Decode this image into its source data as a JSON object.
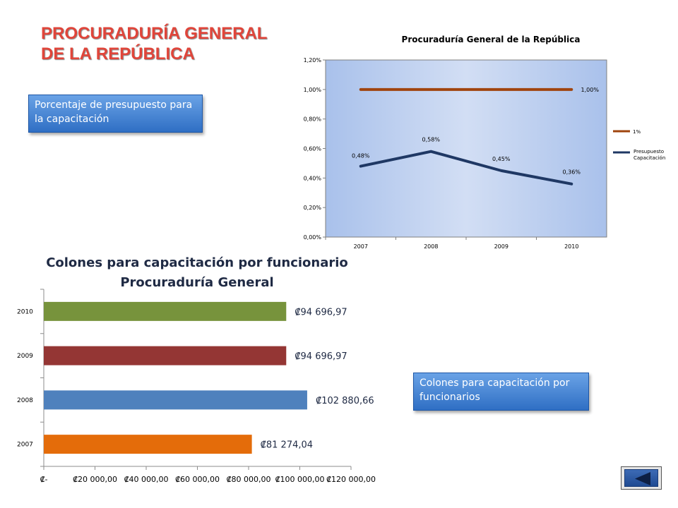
{
  "slide": {
    "title_lines": [
      "PROCURADURÍA GENERAL",
      "DE LA REPÚBLICA"
    ],
    "callout_1": "Porcentaje de presupuesto para la capacitación",
    "callout_2": "Colones para capacitación por funcionarios"
  },
  "colors": {
    "title_red": "#e0453a",
    "callout_blue": "#3b7bd0",
    "line_1pct": "#a0440e",
    "line_presupuesto": "#1f3864",
    "plot_bg": "#c8d8f2",
    "bar_2007": "#e46c0a",
    "bar_2008": "#4f81bd",
    "bar_2009": "#943634",
    "bar_2010": "#77933c"
  },
  "chart_data": [
    {
      "type": "line",
      "title": "Procuraduría General de la República",
      "categories": [
        "2007",
        "2008",
        "2009",
        "2010"
      ],
      "y_ticks": [
        "0,00%",
        "0,20%",
        "0,40%",
        "0,60%",
        "0,80%",
        "1,00%",
        "1,20%"
      ],
      "ylim": [
        0,
        1.2
      ],
      "series": [
        {
          "name": "1%",
          "values": [
            1.0,
            1.0,
            1.0,
            1.0
          ],
          "labels": [
            "",
            "",
            "",
            "1,00%"
          ],
          "color_key": "line_1pct"
        },
        {
          "name": "Presupuesto Capacitación",
          "values": [
            0.48,
            0.58,
            0.45,
            0.36
          ],
          "labels": [
            "0,48%",
            "0,58%",
            "0,45%",
            "0,36%"
          ],
          "color_key": "line_presupuesto"
        }
      ],
      "legend": "right",
      "grid": false
    },
    {
      "type": "bar",
      "orientation": "horizontal",
      "title_lines": [
        "Colones para capacitación por funcionario",
        "Procuraduría General"
      ],
      "categories": [
        "2007",
        "2008",
        "2009",
        "2010"
      ],
      "values": [
        81274.04,
        102880.66,
        94696.97,
        94696.97
      ],
      "labels": [
        "₡81 274,04",
        "₡102 880,66",
        "₡94 696,97",
        "₡94 696,97"
      ],
      "x_ticks": [
        "₡-",
        "₡20 000,00",
        "₡40 000,00",
        "₡60 000,00",
        "₡80 000,00",
        "₡100 000,00",
        "₡120 000,00"
      ],
      "xlim": [
        0,
        120000
      ],
      "bar_color_keys": [
        "bar_2007",
        "bar_2008",
        "bar_2009",
        "bar_2010"
      ],
      "grid": false
    }
  ]
}
